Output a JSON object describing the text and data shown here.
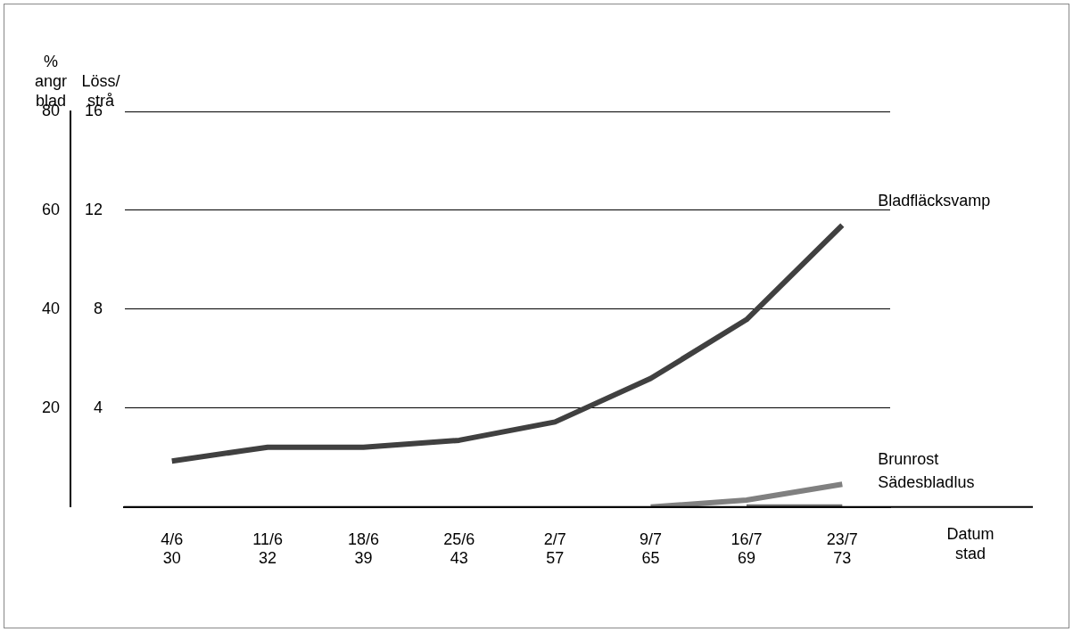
{
  "chart_data": {
    "type": "line",
    "categories": [
      "4/6\n30",
      "11/6\n32",
      "18/6\n39",
      "25/6\n43",
      "2/7\n57",
      "9/7\n65",
      "16/7\n69",
      "23/7\n73"
    ],
    "xlabel": "Datum\nstad",
    "ylabel": "%\nangr\nblad",
    "y2label": "Löss/\nstrå",
    "ylim": [
      0,
      80
    ],
    "yticks": [
      20,
      40,
      60,
      80
    ],
    "y2lim": [
      0,
      16
    ],
    "y2ticks": [
      4,
      8,
      12,
      16
    ],
    "grid": "y",
    "legend": false,
    "marker": "none",
    "line_style": "solid",
    "series": [
      {
        "name": "Bladfläcksvamp",
        "color": "#404040",
        "values": [
          9.3,
          12.1,
          12.1,
          13.5,
          17.2,
          26,
          37.9,
          57
        ]
      },
      {
        "name": "Brunrost",
        "color": "#808080",
        "values": [
          null,
          null,
          null,
          null,
          null,
          0,
          1.4,
          4.6
        ]
      },
      {
        "name": "Sädesbladlus",
        "color": "#707070",
        "values": [
          null,
          null,
          null,
          null,
          null,
          null,
          0,
          0
        ]
      }
    ]
  }
}
